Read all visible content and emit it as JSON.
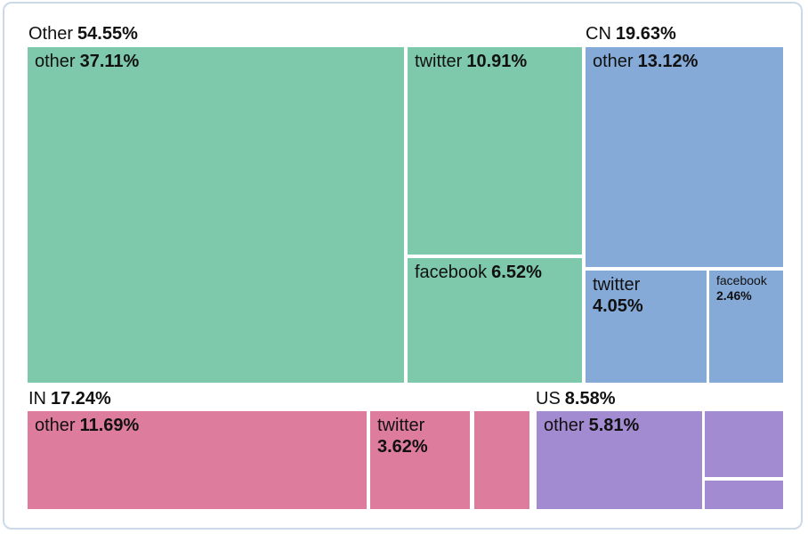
{
  "styles": {
    "card_border": "#ccd9e9",
    "background": "#ffffff",
    "text_color": "#111111"
  },
  "chart_data": {
    "type": "treemap",
    "title": "",
    "legend_position": "none",
    "grid": false,
    "groups": [
      {
        "name": "Other",
        "pct_text": "54.55%",
        "value": 54.55,
        "color": "#7ec8ab",
        "children": [
          {
            "name": "other",
            "pct_text": "37.11%",
            "value": 37.11
          },
          {
            "name": "twitter",
            "pct_text": "10.91%",
            "value": 10.91
          },
          {
            "name": "facebook",
            "pct_text": "6.52%",
            "value": 6.52
          }
        ]
      },
      {
        "name": "CN",
        "pct_text": "19.63%",
        "value": 19.63,
        "color": "#85aad8",
        "children": [
          {
            "name": "other",
            "pct_text": "13.12%",
            "value": 13.12
          },
          {
            "name": "twitter",
            "pct_text": "4.05%",
            "value": 4.05
          },
          {
            "name": "facebook",
            "pct_text": "2.46%",
            "value": 2.46
          }
        ]
      },
      {
        "name": "IN",
        "pct_text": "17.24%",
        "value": 17.24,
        "color": "#de7c9d",
        "children": [
          {
            "name": "other",
            "pct_text": "11.69%",
            "value": 11.69
          },
          {
            "name": "twitter",
            "pct_text": "3.62%",
            "value": 3.62
          },
          {
            "name": "",
            "pct_text": ""
          }
        ]
      },
      {
        "name": "US",
        "pct_text": "8.58%",
        "value": 8.58,
        "color": "#a38bd1",
        "children": [
          {
            "name": "other",
            "pct_text": "5.81%",
            "value": 5.81
          },
          {
            "name": "",
            "pct_text": ""
          },
          {
            "name": "",
            "pct_text": ""
          }
        ]
      }
    ]
  }
}
